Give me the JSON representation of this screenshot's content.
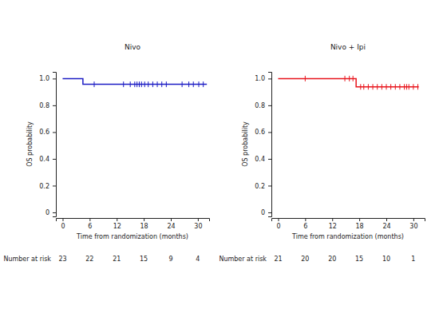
{
  "chart_data": [
    {
      "type": "step",
      "title": "Nivo",
      "xlabel": "Time from randomization (months)",
      "ylabel": "OS probability",
      "x": [
        0,
        4.5,
        32
      ],
      "values": [
        1,
        0.957,
        0.957
      ],
      "color": "#1c1cc4",
      "marker": "censor",
      "censor_x": [
        7,
        13.5,
        15,
        16,
        16.5,
        17,
        17.5,
        18.2,
        19,
        20,
        21,
        22,
        23,
        26.5,
        28,
        29,
        30.2,
        31.2
      ],
      "censor_values": [
        0.957,
        0.957,
        0.957,
        0.957,
        0.957,
        0.957,
        0.957,
        0.957,
        0.957,
        0.957,
        0.957,
        0.957,
        0.957,
        0.957,
        0.957,
        0.957,
        0.957,
        0.957
      ],
      "xlim": [
        -1.5,
        32.5
      ],
      "xticks": [
        0,
        6,
        12,
        18,
        24,
        30
      ],
      "ylim": [
        -0.03,
        1.05
      ],
      "yticks": [
        0,
        0.2,
        0.4,
        0.6,
        0.8,
        {
          "value": 1,
          "label": "1.0"
        }
      ],
      "risk_label": "Number at risk",
      "risk_x": [
        0,
        6,
        12,
        18,
        24,
        30
      ],
      "risk_values": [
        23,
        22,
        21,
        15,
        9,
        4
      ]
    },
    {
      "type": "step",
      "title": "Nivo + Ipi",
      "xlabel": "Time from randomization (months)",
      "ylabel": "OS probability",
      "x": [
        0,
        17.3,
        31.2
      ],
      "values": [
        1,
        0.938,
        0.938
      ],
      "color": "#e8141c",
      "marker": "censor",
      "censor_x": [
        6,
        14.8,
        15.8,
        16.6,
        18.3,
        19,
        20,
        21,
        22,
        23,
        24,
        25,
        26,
        27,
        28,
        28.5,
        29,
        30,
        31
      ],
      "censor_values": [
        1,
        1,
        1,
        1,
        0.938,
        0.938,
        0.938,
        0.938,
        0.938,
        0.938,
        0.938,
        0.938,
        0.938,
        0.938,
        0.938,
        0.938,
        0.938,
        0.938,
        0.938
      ],
      "xlim": [
        -1.5,
        32.5
      ],
      "xticks": [
        0,
        6,
        12,
        18,
        24,
        30
      ],
      "ylim": [
        -0.03,
        1.05
      ],
      "yticks": [
        0,
        0.2,
        0.4,
        0.6,
        0.8,
        {
          "value": 1,
          "label": "1.0"
        }
      ],
      "risk_label": "Number at risk",
      "risk_x": [
        0,
        6,
        12,
        18,
        24,
        30
      ],
      "risk_values": [
        21,
        20,
        20,
        15,
        10,
        1
      ]
    }
  ]
}
